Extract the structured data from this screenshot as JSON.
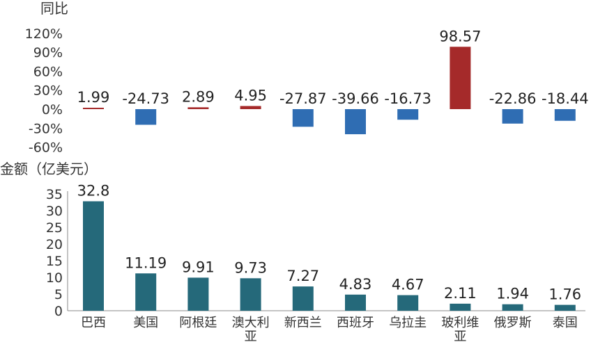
{
  "chart_data": [
    {
      "type": "bar",
      "ylabel": "同比",
      "categories": [
        "巴西",
        "美国",
        "阿根廷",
        "澳大利亚",
        "新西兰",
        "西班牙",
        "乌拉圭",
        "玻利维亚",
        "俄罗斯",
        "泰国"
      ],
      "values": [
        1.99,
        -24.73,
        2.89,
        4.95,
        -27.87,
        -39.66,
        -16.73,
        98.57,
        -22.86,
        -18.44
      ],
      "value_labels": [
        "1.99",
        "-24.73",
        "2.89",
        "4.95",
        "-27.87",
        "-39.66",
        "-16.73",
        "98.57",
        "-22.86",
        "-18.44"
      ],
      "yticks": [
        "120%",
        "90%",
        "60%",
        "30%",
        "0%",
        "-30%",
        "-60%"
      ],
      "ylim": [
        -60,
        120
      ],
      "positive_color": "#a52a2a",
      "negative_color": "#2f6db3"
    },
    {
      "type": "bar",
      "ylabel": "金额（亿美元）",
      "categories": [
        "巴西",
        "美国",
        "阿根廷",
        "澳大利亚",
        "新西兰",
        "西班牙",
        "乌拉圭",
        "玻利维亚",
        "俄罗斯",
        "泰国"
      ],
      "values": [
        32.8,
        11.19,
        9.91,
        9.73,
        7.27,
        4.83,
        4.67,
        2.11,
        1.94,
        1.76
      ],
      "value_labels": [
        "32.8",
        "11.19",
        "9.91",
        "9.73",
        "7.27",
        "4.83",
        "4.67",
        "2.11",
        "1.94",
        "1.76"
      ],
      "yticks": [
        "35",
        "30",
        "25",
        "20",
        "15",
        "10",
        "5",
        "0"
      ],
      "ylim": [
        0,
        35
      ],
      "bar_color": "#25697a"
    }
  ]
}
